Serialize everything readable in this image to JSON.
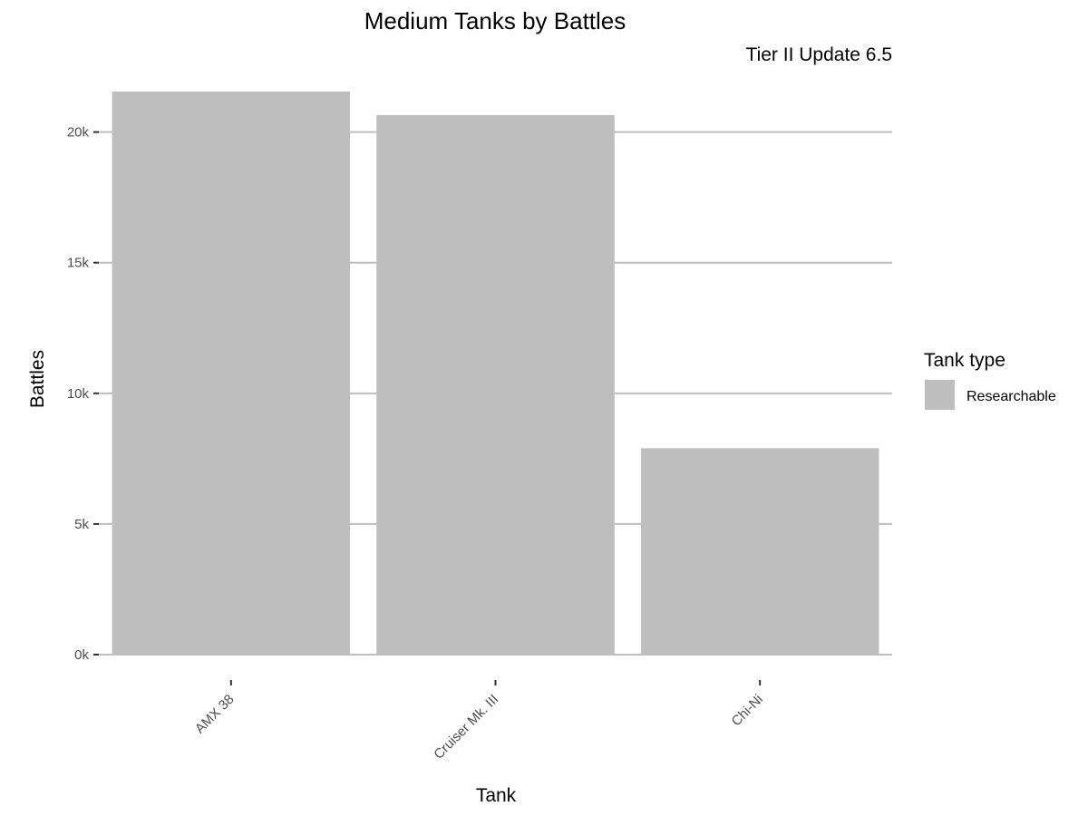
{
  "chart_data": {
    "type": "bar",
    "title": "Medium Tanks by Battles",
    "subtitle": "Tier II Update 6.5",
    "xlabel": "Tank",
    "ylabel": "Battles",
    "categories": [
      "AMX 38",
      "Cruiser Mk. III",
      "Chi-Ni"
    ],
    "series": [
      {
        "name": "Researchable",
        "values": [
          21550,
          20650,
          7900
        ],
        "color": "#bebebe"
      }
    ],
    "ylim": [
      0,
      22000
    ],
    "yticks": [
      0,
      5000,
      10000,
      15000,
      20000
    ],
    "ytick_labels": [
      "0k",
      "5k",
      "10k",
      "15k",
      "20k"
    ],
    "grid": true,
    "legend": {
      "title": "Tank type",
      "position": "right"
    }
  }
}
